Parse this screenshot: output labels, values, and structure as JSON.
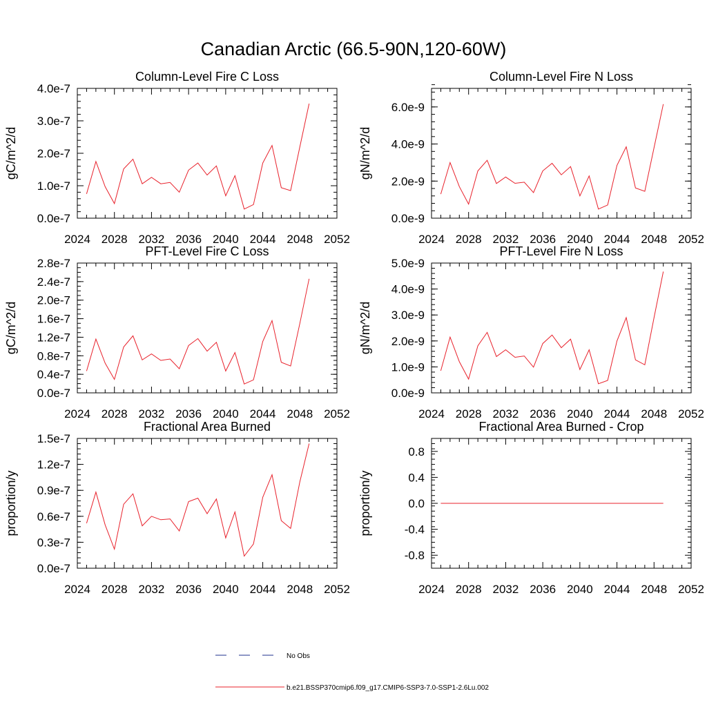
{
  "figure": {
    "title": "Canadian Arctic (66.5-90N,120-60W)"
  },
  "legend": {
    "entries": [
      {
        "label": "No Obs",
        "color": "#1e2f8c",
        "dash": "dashed"
      },
      {
        "label": "b.e21.BSSP370cmip6.f09_g17.CMIP6-SSP3-7.0-SSP1-2.6Lu.002",
        "color": "#e8202a",
        "dash": "solid"
      }
    ]
  },
  "chart_data": [
    {
      "type": "line",
      "title": "Column-Level Fire C Loss",
      "xlabel": "",
      "ylabel": "gC/m^2/d",
      "xlim": [
        2024,
        2052
      ],
      "ylim": [
        0,
        4e-07
      ],
      "xticks": [
        "2024",
        "2028",
        "2032",
        "2036",
        "2040",
        "2044",
        "2048",
        "2052"
      ],
      "yticks": [
        {
          "value": 0.0,
          "label": "0.0e-7"
        },
        {
          "value": 1e-07,
          "label": "1.0e-7"
        },
        {
          "value": 2e-07,
          "label": "2.0e-7"
        },
        {
          "value": 3e-07,
          "label": "3.0e-7"
        },
        {
          "value": 4e-07,
          "label": "4.0e-7"
        }
      ],
      "minor_y": 2e-08,
      "color": "#e8202a",
      "x": [
        2025,
        2026,
        2027,
        2028,
        2029,
        2030,
        2031,
        2032,
        2033,
        2034,
        2035,
        2036,
        2037,
        2038,
        2039,
        2040,
        2041,
        2042,
        2043,
        2044,
        2045,
        2046,
        2047,
        2048,
        2049
      ],
      "y": [
        7.5e-08,
        1.75e-07,
        9.7e-08,
        4.5e-08,
        1.52e-07,
        1.82e-07,
        1.06e-07,
        1.26e-07,
        1.06e-07,
        1.1e-07,
        8e-08,
        1.48e-07,
        1.7e-07,
        1.33e-07,
        1.61e-07,
        6.9e-08,
        1.31e-07,
        2.8e-08,
        4.2e-08,
        1.7e-07,
        2.24e-07,
        9.4e-08,
        8.5e-08,
        2.2e-07,
        3.53e-07
      ]
    },
    {
      "type": "line",
      "title": "Column-Level Fire N Loss",
      "xlabel": "",
      "ylabel": "gN/m^2/d",
      "xlim": [
        2024,
        2052
      ],
      "ylim": [
        0,
        7e-09
      ],
      "xticks": [
        "2024",
        "2028",
        "2032",
        "2036",
        "2040",
        "2044",
        "2048",
        "2052"
      ],
      "yticks": [
        {
          "value": 0.0,
          "label": "0.0e-9"
        },
        {
          "value": 2e-09,
          "label": "2.0e-9"
        },
        {
          "value": 4e-09,
          "label": "4.0e-9"
        },
        {
          "value": 6e-09,
          "label": "6.0e-9"
        }
      ],
      "minor_y": 4e-10,
      "color": "#e8202a",
      "x": [
        2025,
        2026,
        2027,
        2028,
        2029,
        2030,
        2031,
        2032,
        2033,
        2034,
        2035,
        2036,
        2037,
        2038,
        2039,
        2040,
        2041,
        2042,
        2043,
        2044,
        2045,
        2046,
        2047,
        2048,
        2049
      ],
      "y": [
        1.3e-09,
        3e-09,
        1.7e-09,
        7.6e-10,
        2.55e-09,
        3.12e-09,
        1.87e-09,
        2.22e-09,
        1.88e-09,
        1.94e-09,
        1.38e-09,
        2.55e-09,
        2.96e-09,
        2.34e-09,
        2.78e-09,
        1.2e-09,
        2.28e-09,
        4.9e-10,
        7.1e-10,
        2.85e-09,
        3.85e-09,
        1.63e-09,
        1.45e-09,
        3.8e-09,
        6.15e-09
      ]
    },
    {
      "type": "line",
      "title": "PFT-Level Fire C Loss",
      "xlabel": "",
      "ylabel": "gC/m^2/d",
      "xlim": [
        2024,
        2052
      ],
      "ylim": [
        0,
        2.8e-07
      ],
      "xticks": [
        "2024",
        "2028",
        "2032",
        "2036",
        "2040",
        "2044",
        "2048",
        "2052"
      ],
      "yticks": [
        {
          "value": 0.0,
          "label": "0.0e-7"
        },
        {
          "value": 4e-08,
          "label": "0.4e-7"
        },
        {
          "value": 8e-08,
          "label": "0.8e-7"
        },
        {
          "value": 1.2e-07,
          "label": "1.2e-7"
        },
        {
          "value": 1.6e-07,
          "label": "1.6e-7"
        },
        {
          "value": 2e-07,
          "label": "2.0e-7"
        },
        {
          "value": 2.4e-07,
          "label": "2.4e-7"
        },
        {
          "value": 2.8e-07,
          "label": "2.8e-7"
        }
      ],
      "minor_y": 1e-08,
      "color": "#e8202a",
      "x": [
        2025,
        2026,
        2027,
        2028,
        2029,
        2030,
        2031,
        2032,
        2033,
        2034,
        2035,
        2036,
        2037,
        2038,
        2039,
        2040,
        2041,
        2042,
        2043,
        2044,
        2045,
        2046,
        2047,
        2048,
        2049
      ],
      "y": [
        4.7e-08,
        1.16e-07,
        6.4e-08,
        2.9e-08,
        9.9e-08,
        1.23e-07,
        7.1e-08,
        8.4e-08,
        7e-08,
        7.3e-08,
        5.2e-08,
        1.02e-07,
        1.17e-07,
        9e-08,
        1.09e-07,
        4.7e-08,
        8.7e-08,
        1.9e-08,
        2.8e-08,
        1.11e-07,
        1.56e-07,
        6.6e-08,
        5.8e-08,
        1.5e-07,
        2.46e-07
      ]
    },
    {
      "type": "line",
      "title": "PFT-Level Fire N Loss",
      "xlabel": "",
      "ylabel": "gN/m^2/d",
      "xlim": [
        2024,
        2052
      ],
      "ylim": [
        0,
        5e-09
      ],
      "xticks": [
        "2024",
        "2028",
        "2032",
        "2036",
        "2040",
        "2044",
        "2048",
        "2052"
      ],
      "yticks": [
        {
          "value": 0.0,
          "label": "0.0e-9"
        },
        {
          "value": 1e-09,
          "label": "1.0e-9"
        },
        {
          "value": 2e-09,
          "label": "2.0e-9"
        },
        {
          "value": 3e-09,
          "label": "3.0e-9"
        },
        {
          "value": 4e-09,
          "label": "4.0e-9"
        },
        {
          "value": 5e-09,
          "label": "5.0e-9"
        }
      ],
      "minor_y": 2e-10,
      "color": "#e8202a",
      "x": [
        2025,
        2026,
        2027,
        2028,
        2029,
        2030,
        2031,
        2032,
        2033,
        2034,
        2035,
        2036,
        2037,
        2038,
        2039,
        2040,
        2041,
        2042,
        2043,
        2044,
        2045,
        2046,
        2047,
        2048,
        2049
      ],
      "y": [
        8.5e-10,
        2.15e-09,
        1.2e-09,
        5.3e-10,
        1.81e-09,
        2.33e-09,
        1.4e-09,
        1.66e-09,
        1.37e-09,
        1.42e-09,
        9.9e-10,
        1.9e-09,
        2.23e-09,
        1.74e-09,
        2.07e-09,
        9e-10,
        1.66e-09,
        3.5e-10,
        4.8e-10,
        2e-09,
        2.9e-09,
        1.27e-09,
        1.08e-09,
        2.9e-09,
        4.67e-09
      ]
    },
    {
      "type": "line",
      "title": "Fractional Area Burned",
      "xlabel": "",
      "ylabel": "proportion/y",
      "xlim": [
        2024,
        2052
      ],
      "ylim": [
        0,
        1.5e-07
      ],
      "xticks": [
        "2024",
        "2028",
        "2032",
        "2036",
        "2040",
        "2044",
        "2048",
        "2052"
      ],
      "yticks": [
        {
          "value": 0.0,
          "label": "0.0e-7"
        },
        {
          "value": 3e-08,
          "label": "0.3e-7"
        },
        {
          "value": 6e-08,
          "label": "0.6e-7"
        },
        {
          "value": 9e-08,
          "label": "0.9e-7"
        },
        {
          "value": 1.2e-07,
          "label": "1.2e-7"
        },
        {
          "value": 1.5e-07,
          "label": "1.5e-7"
        }
      ],
      "minor_y": 6e-09,
      "color": "#e8202a",
      "x": [
        2025,
        2026,
        2027,
        2028,
        2029,
        2030,
        2031,
        2032,
        2033,
        2034,
        2035,
        2036,
        2037,
        2038,
        2039,
        2040,
        2041,
        2042,
        2043,
        2044,
        2045,
        2046,
        2047,
        2048,
        2049
      ],
      "y": [
        5.2e-08,
        8.8e-08,
        5e-08,
        2.2e-08,
        7.4e-08,
        8.6e-08,
        4.9e-08,
        6e-08,
        5.6e-08,
        5.7e-08,
        4.3e-08,
        7.7e-08,
        8.1e-08,
        6.3e-08,
        8e-08,
        3.5e-08,
        6.5e-08,
        1.4e-08,
        2.8e-08,
        8.2e-08,
        1.08e-07,
        5.5e-08,
        4.6e-08,
        1e-07,
        1.44e-07
      ]
    },
    {
      "type": "line",
      "title": "Fractional Area Burned - Crop",
      "xlabel": "",
      "ylabel": "proportion/y",
      "xlim": [
        2024,
        2052
      ],
      "ylim": [
        -1.0,
        1.0
      ],
      "xticks": [
        "2024",
        "2028",
        "2032",
        "2036",
        "2040",
        "2044",
        "2048",
        "2052"
      ],
      "yticks": [
        {
          "value": -0.8,
          "label": "-0.8"
        },
        {
          "value": -0.4,
          "label": "-0.4"
        },
        {
          "value": 0.0,
          "label": "0.0"
        },
        {
          "value": 0.4,
          "label": "0.4"
        },
        {
          "value": 0.8,
          "label": "0.8"
        }
      ],
      "minor_y": 0.08,
      "color": "#e8202a",
      "x": [
        2025,
        2049
      ],
      "y": [
        0,
        0
      ]
    }
  ]
}
